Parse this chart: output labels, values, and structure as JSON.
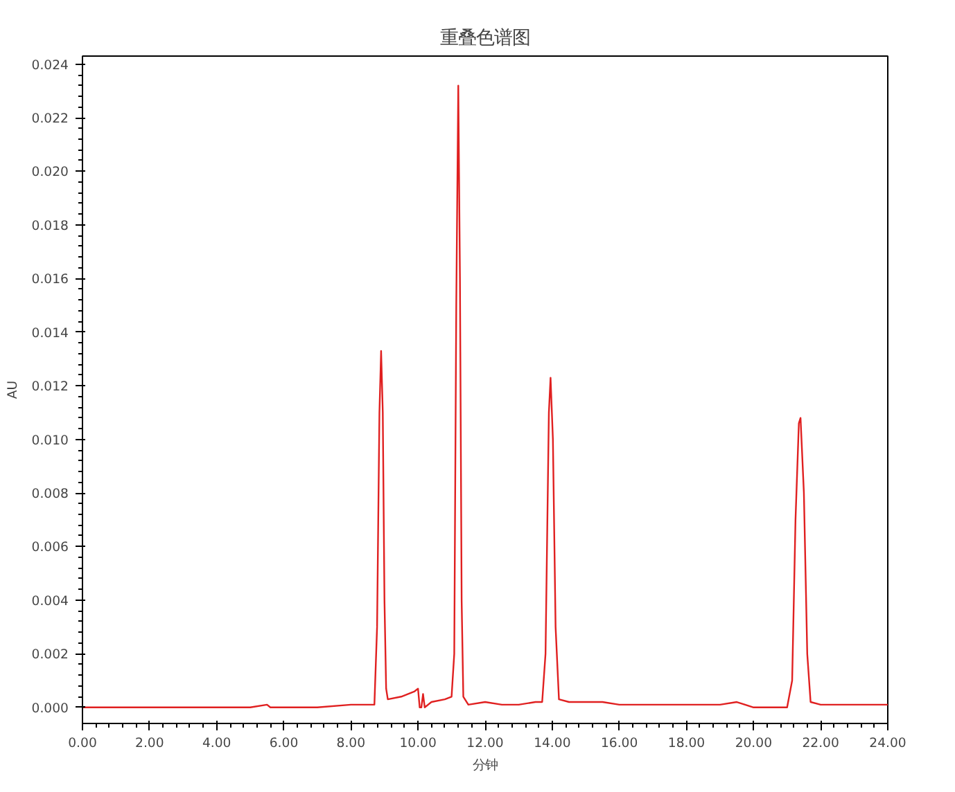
{
  "chart_data": {
    "type": "line",
    "title": "重叠色谱图",
    "xlabel": "分钟",
    "ylabel": "AU",
    "grid": false,
    "marker": "none",
    "line_style": "solid",
    "xlim": [
      0,
      24
    ],
    "ylim": [
      -0.0006,
      0.0243
    ],
    "xticks": [
      {
        "value": 0,
        "label": "0.00"
      },
      {
        "value": 2,
        "label": "2.00"
      },
      {
        "value": 4,
        "label": "4.00"
      },
      {
        "value": 6,
        "label": "6.00"
      },
      {
        "value": 8,
        "label": "8.00"
      },
      {
        "value": 10,
        "label": "10.00"
      },
      {
        "value": 12,
        "label": "12.00"
      },
      {
        "value": 14,
        "label": "14.00"
      },
      {
        "value": 16,
        "label": "16.00"
      },
      {
        "value": 18,
        "label": "18.00"
      },
      {
        "value": 20,
        "label": "20.00"
      },
      {
        "value": 22,
        "label": "22.00"
      },
      {
        "value": 24,
        "label": "24.00"
      }
    ],
    "yticks": [
      {
        "value": 0,
        "label": "0.000"
      },
      {
        "value": 0.002,
        "label": "0.002"
      },
      {
        "value": 0.004,
        "label": "0.004"
      },
      {
        "value": 0.006,
        "label": "0.006"
      },
      {
        "value": 0.008,
        "label": "0.008"
      },
      {
        "value": 0.01,
        "label": "0.010"
      },
      {
        "value": 0.012,
        "label": "0.012"
      },
      {
        "value": 0.014,
        "label": "0.014"
      },
      {
        "value": 0.016,
        "label": "0.016"
      },
      {
        "value": 0.018,
        "label": "0.018"
      },
      {
        "value": 0.02,
        "label": "0.020"
      },
      {
        "value": 0.022,
        "label": "0.022"
      },
      {
        "value": 0.024,
        "label": "0.024"
      }
    ],
    "series": [
      {
        "color": "#e02020",
        "x": [
          0,
          1,
          2,
          3,
          4,
          5,
          5.5,
          5.6,
          6,
          7,
          8,
          8.5,
          8.7,
          8.78,
          8.85,
          8.9,
          8.95,
          9.0,
          9.05,
          9.1,
          9.5,
          9.9,
          10.0,
          10.05,
          10.1,
          10.15,
          10.2,
          10.4,
          10.8,
          11.0,
          11.08,
          11.14,
          11.2,
          11.25,
          11.3,
          11.35,
          11.5,
          12,
          12.5,
          13,
          13.5,
          13.7,
          13.8,
          13.9,
          13.95,
          14.02,
          14.1,
          14.2,
          14.5,
          15,
          15.5,
          16,
          17,
          18,
          19,
          19.5,
          20,
          20.5,
          21,
          21.15,
          21.25,
          21.35,
          21.4,
          21.5,
          21.6,
          21.7,
          22,
          23,
          24
        ],
        "values": [
          0,
          0,
          0,
          0,
          0,
          0,
          0.0001,
          0,
          0,
          0,
          0.0001,
          0.0001,
          0.0001,
          0.003,
          0.011,
          0.0133,
          0.011,
          0.004,
          0.0007,
          0.0003,
          0.0004,
          0.0006,
          0.0007,
          0,
          0,
          0.0005,
          0,
          0.0002,
          0.0003,
          0.0004,
          0.002,
          0.015,
          0.0232,
          0.016,
          0.004,
          0.0004,
          0.0001,
          0.0002,
          0.0001,
          0.0001,
          0.0002,
          0.0002,
          0.002,
          0.011,
          0.0123,
          0.01,
          0.003,
          0.0003,
          0.0002,
          0.0002,
          0.0002,
          0.0001,
          0.0001,
          0.0001,
          0.0001,
          0.0002,
          0,
          0,
          0,
          0.001,
          0.007,
          0.0106,
          0.0108,
          0.008,
          0.002,
          0.0002,
          0.0001,
          0.0001,
          0.0001
        ]
      }
    ]
  }
}
